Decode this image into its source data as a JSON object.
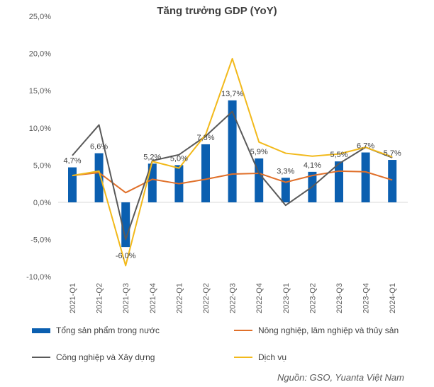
{
  "chart_data": {
    "type": "bar+line",
    "title": "Tăng trưởng GDP (YoY)",
    "categories": [
      "2021-Q1",
      "2021-Q2",
      "2021-Q3",
      "2021-Q4",
      "2022-Q1",
      "2022-Q2",
      "2022-Q3",
      "2022-Q4",
      "2023-Q1",
      "2023-Q2",
      "2023-Q3",
      "2023-Q4",
      "2024-Q1"
    ],
    "ylim": [
      -10,
      25
    ],
    "yticks": [
      "-10,0%",
      "-5,0%",
      "0,0%",
      "5,0%",
      "10,0%",
      "15,0%",
      "20,0%",
      "25,0%"
    ],
    "grid": false,
    "legend": "bottom",
    "series": [
      {
        "name": "Tổng sản phẩm trong nước",
        "type": "bar",
        "color": "#0B5FB0",
        "values": [
          4.7,
          6.6,
          -6.0,
          5.2,
          5.0,
          7.8,
          13.7,
          5.9,
          3.3,
          4.1,
          5.5,
          6.7,
          5.7
        ],
        "labels": [
          "4,7%",
          "6,6%",
          "-6,0%",
          "5,2%",
          "5,0%",
          "7,8%",
          "13,7%",
          "5,9%",
          "3,3%",
          "4,1%",
          "5,5%",
          "6,7%",
          "5,7%"
        ]
      },
      {
        "name": "Nông nghiệp, lâm nghiệp và thủy sản",
        "type": "line",
        "color": "#E0702A",
        "values": [
          3.6,
          4.0,
          1.3,
          3.1,
          2.5,
          3.1,
          3.8,
          3.9,
          2.7,
          3.6,
          4.2,
          4.1,
          3.0
        ]
      },
      {
        "name": "Công nghiệp và Xây dựng",
        "type": "line",
        "color": "#595959",
        "values": [
          6.3,
          10.4,
          -5.0,
          5.6,
          6.4,
          8.9,
          12.2,
          3.9,
          -0.4,
          2.1,
          5.2,
          7.4,
          6.0
        ]
      },
      {
        "name": "Dịch vụ",
        "type": "line",
        "color": "#F2B91B",
        "values": [
          3.6,
          4.2,
          -8.5,
          5.5,
          4.6,
          9.1,
          19.3,
          8.1,
          6.6,
          6.2,
          6.5,
          7.4,
          6.1
        ]
      }
    ]
  },
  "source": "Nguồn: GSO, Yuanta Việt Nam"
}
